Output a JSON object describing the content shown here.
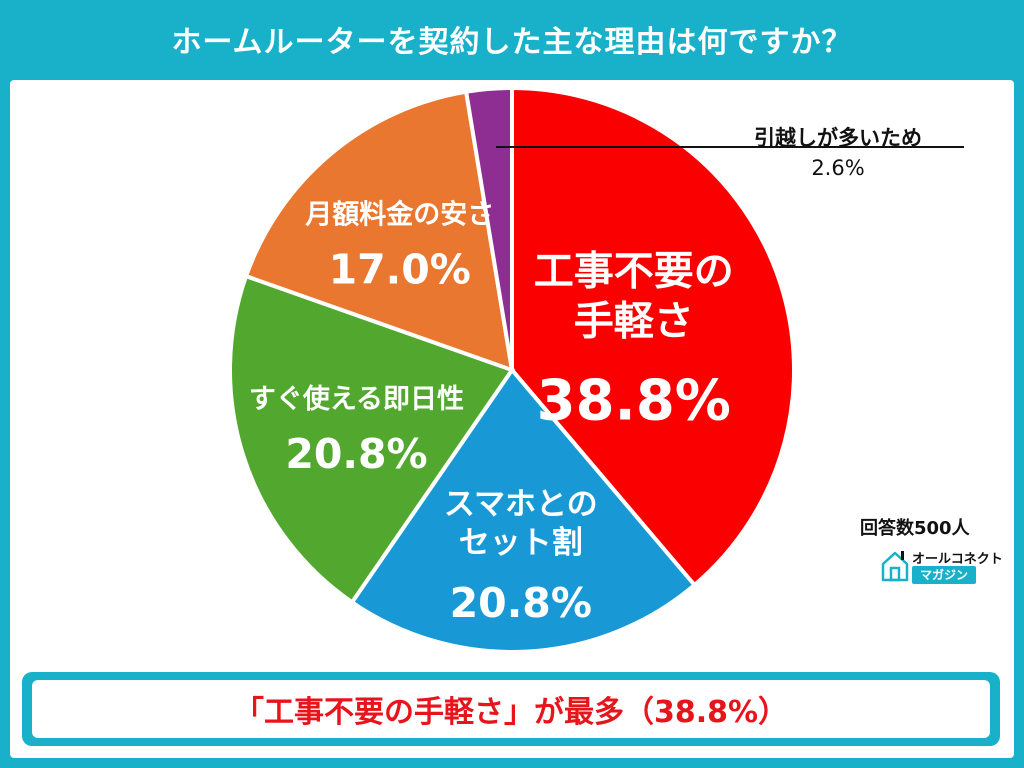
{
  "header": {
    "title": "ホームルーターを契約した主な理由は何ですか？"
  },
  "chart_data": {
    "type": "pie",
    "start_angle_deg": 0,
    "direction": "clockwise",
    "slices": [
      {
        "label": "工事不要の手軽さ",
        "label_lines": [
          "工事不要の",
          "手軽さ"
        ],
        "value": 38.8,
        "value_text": "38.8%",
        "color": "#fa0000"
      },
      {
        "label": "スマホとのセット割",
        "label_lines": [
          "スマホとの",
          "セット割"
        ],
        "value": 20.8,
        "value_text": "20.8%",
        "color": "#1899d6"
      },
      {
        "label": "すぐ使える即日性",
        "label_lines": [
          "すぐ使える即日性"
        ],
        "value": 20.8,
        "value_text": "20.8%",
        "color": "#52a82e"
      },
      {
        "label": "月額料金の安さ",
        "label_lines": [
          "月額料金の安さ"
        ],
        "value": 17.0,
        "value_text": "17.0%",
        "color": "#e9772f"
      },
      {
        "label": "引越しが多いため",
        "label_lines": [
          "引越しが多いため"
        ],
        "value": 2.6,
        "value_text": "2.6%",
        "color": "#8e2e92"
      }
    ]
  },
  "callout": {
    "label": "引越しが多いため",
    "value": "2.6%"
  },
  "footnote": {
    "sample": "回答数500人"
  },
  "brand": {
    "line1": "オールコネクト",
    "line2": "マガジン"
  },
  "summary": {
    "text": "「工事不要の手軽さ」が最多（38.8%）"
  }
}
